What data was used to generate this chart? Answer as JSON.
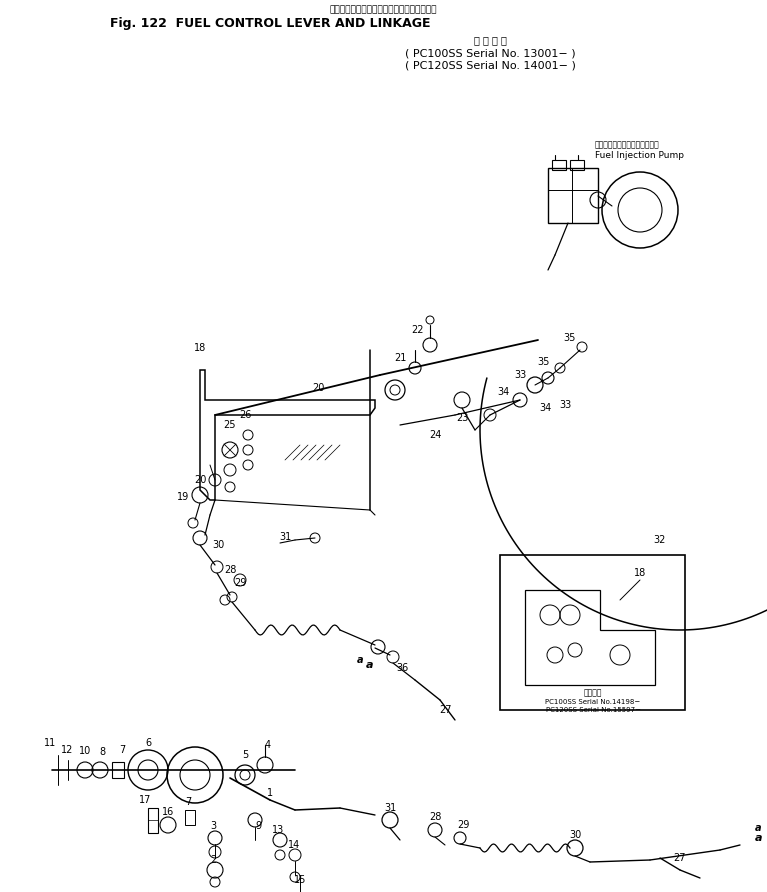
{
  "fig_title": "Fig. 122  FUEL CONTROL LEVER AND LINKAGE",
  "title_jp": "フェルインジェクションポンプ・リンケージ",
  "subtitle_jp": "適 用 号 機",
  "subtitle1": "PC100SS Serial No. 13001− )",
  "subtitle2": "( PC120SS Serial No. 14001− )",
  "subtitle1_pre": "( ",
  "fuel_pump_jp": "フェルインジェクションポンプ",
  "fuel_pump_en": "Fuel Injection Pump",
  "inset_jp": "適期号機",
  "inset_line1": "PC100SS Serial No.14198−",
  "inset_line2": "PC120SS Serial No.15597−",
  "background_color": "#ffffff"
}
